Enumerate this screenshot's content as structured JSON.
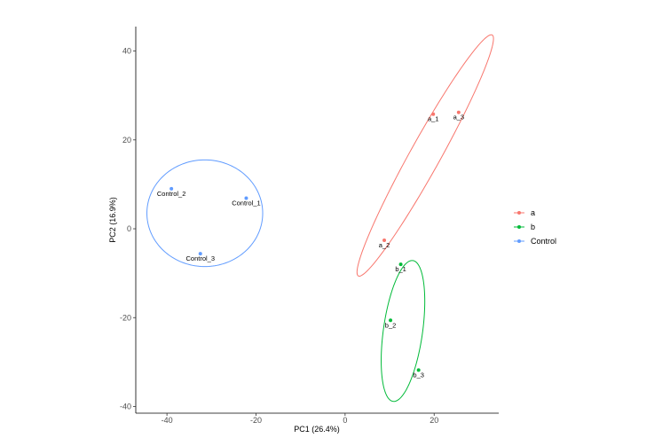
{
  "chart_data": {
    "type": "scatter",
    "xlabel": "PC1 (26.4%)",
    "ylabel": "PC2 (16.9%)",
    "xlim": [
      -47,
      34.5
    ],
    "ylim": [
      -41.5,
      45.5
    ],
    "x_ticks": [
      -40,
      -20,
      0,
      20
    ],
    "y_ticks": [
      -40,
      -20,
      0,
      20,
      40
    ],
    "grid": false,
    "legend_position": "right",
    "series": [
      {
        "name": "a",
        "color": "#F8766D",
        "points": [
          {
            "label": "a_1",
            "x": 19.8,
            "y": 25.8
          },
          {
            "label": "a_3",
            "x": 25.5,
            "y": 26.2
          },
          {
            "label": "a_2",
            "x": 8.8,
            "y": -2.6
          }
        ],
        "ellipse": {
          "cx": 18.0,
          "cy": 16.5,
          "rx": 31.0,
          "ry": 3.4,
          "angle_deg": 61
        }
      },
      {
        "name": "b",
        "color": "#00BA38",
        "points": [
          {
            "label": "b_1",
            "x": 12.5,
            "y": -8.0
          },
          {
            "label": "b_2",
            "x": 10.2,
            "y": -20.6
          },
          {
            "label": "b_3",
            "x": 16.5,
            "y": -31.8
          }
        ],
        "ellipse": {
          "cx": 13.0,
          "cy": -23.0,
          "rx": 16.0,
          "ry": 4.4,
          "angle_deg": 82
        }
      },
      {
        "name": "Control",
        "color": "#619CFF",
        "points": [
          {
            "label": "Control_1",
            "x": -22.2,
            "y": 6.9
          },
          {
            "label": "Control_2",
            "x": -39.0,
            "y": 9.0
          },
          {
            "label": "Control_3",
            "x": -32.5,
            "y": -5.6
          }
        ],
        "ellipse": {
          "cx": -31.5,
          "cy": 3.5,
          "rx": 13.0,
          "ry": 12.0,
          "angle_deg": 0
        }
      }
    ]
  }
}
